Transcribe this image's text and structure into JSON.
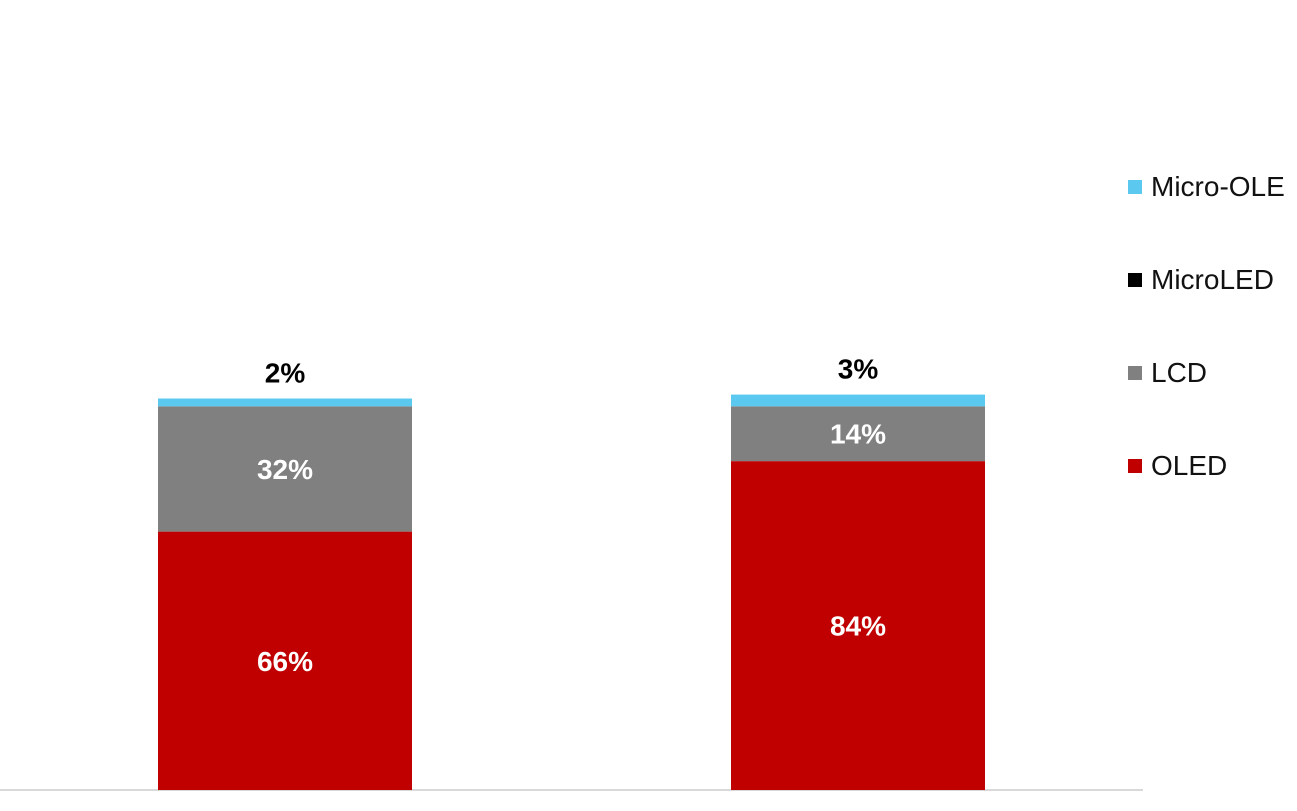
{
  "chart_data": {
    "type": "bar",
    "stacked": true,
    "categories": [
      "",
      ""
    ],
    "series": [
      {
        "name": "OLED",
        "color": "#c00000",
        "values": [
          66,
          84
        ],
        "labels": [
          "66%",
          "84%"
        ],
        "label_color": "#ffffff"
      },
      {
        "name": "LCD",
        "color": "#808080",
        "values": [
          32,
          14
        ],
        "labels": [
          "32%",
          "14%"
        ],
        "label_color": "#ffffff"
      },
      {
        "name": "MicroLED",
        "color": "#000000",
        "values": [
          0,
          0
        ],
        "labels": [
          "",
          ""
        ],
        "label_color": "#000000"
      },
      {
        "name": "Micro-OLE",
        "color": "#5bc8ef",
        "values": [
          2,
          3
        ],
        "labels": [
          "2%",
          "3%"
        ],
        "label_color": "#000000",
        "label_position": "above"
      }
    ],
    "legend": {
      "position": "right",
      "order": [
        "Micro-OLE",
        "MicroLED",
        "LCD",
        "OLED"
      ]
    },
    "grid": false,
    "y_axis_visible": false
  }
}
